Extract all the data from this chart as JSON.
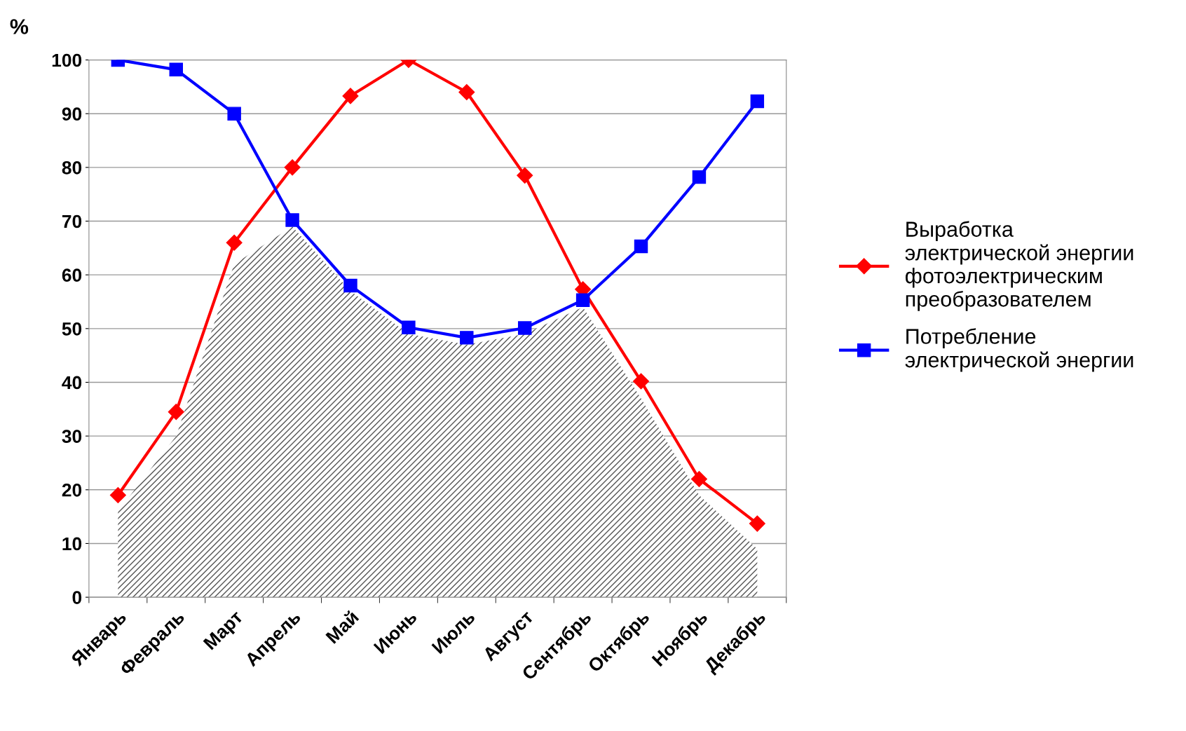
{
  "chart_data": {
    "type": "line",
    "ylabel": "%",
    "categories": [
      "Январь",
      "Февраль",
      "Март",
      "Апрель",
      "Май",
      "Июнь",
      "Июль",
      "Август",
      "Сентябрь",
      "Октябрь",
      "Ноябрь",
      "Декабрь"
    ],
    "series": [
      {
        "type": "area",
        "color": "#555555",
        "values": [
          16,
          30,
          62,
          69,
          57,
          49,
          47,
          49,
          54,
          37,
          19,
          9
        ]
      },
      {
        "name": "Выработка\nэлектрической энергии\nфотоэлектрическим\nпреобразователем",
        "color": "#ff0000",
        "marker": "diamond",
        "values": [
          19,
          34.5,
          66,
          80,
          93.3,
          100,
          94,
          78.5,
          57.3,
          40.2,
          22,
          13.7
        ]
      },
      {
        "name": "Потребление\nэлектрической энергии",
        "color": "#0000ff",
        "marker": "square",
        "values": [
          100,
          98.2,
          90,
          70.2,
          58,
          50.2,
          48.3,
          50.1,
          55.3,
          65.3,
          78.2,
          92.3
        ]
      }
    ],
    "ylim": [
      0,
      100
    ],
    "yticks": [
      0,
      10,
      20,
      30,
      40,
      50,
      60,
      70,
      80,
      90,
      100
    ],
    "grid": "y",
    "legend": "right",
    "line_style": "solid"
  }
}
